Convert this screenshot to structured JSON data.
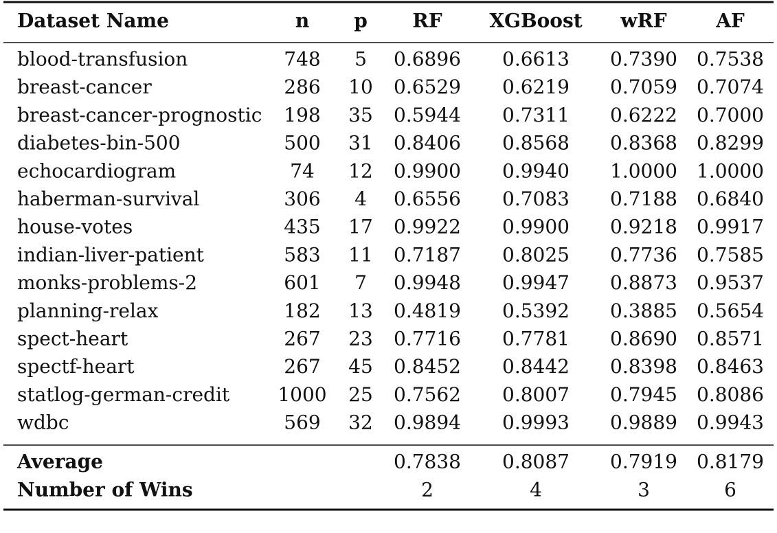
{
  "table": {
    "header": [
      "Dataset Name",
      "n",
      "p",
      "RF",
      "XGBoost",
      "wRF",
      "AF"
    ],
    "rows": [
      [
        "blood-transfusion",
        "748",
        "5",
        "0.6896",
        "0.6613",
        "0.7390",
        "0.7538"
      ],
      [
        "breast-cancer",
        "286",
        "10",
        "0.6529",
        "0.6219",
        "0.7059",
        "0.7074"
      ],
      [
        "breast-cancer-prognostic",
        "198",
        "35",
        "0.5944",
        "0.7311",
        "0.6222",
        "0.7000"
      ],
      [
        "diabetes-bin-500",
        "500",
        "31",
        "0.8406",
        "0.8568",
        "0.8368",
        "0.8299"
      ],
      [
        "echocardiogram",
        "74",
        "12",
        "0.9900",
        "0.9940",
        "1.0000",
        "1.0000"
      ],
      [
        "haberman-survival",
        "306",
        "4",
        "0.6556",
        "0.7083",
        "0.7188",
        "0.6840"
      ],
      [
        "house-votes",
        "435",
        "17",
        "0.9922",
        "0.9900",
        "0.9218",
        "0.9917"
      ],
      [
        "indian-liver-patient",
        "583",
        "11",
        "0.7187",
        "0.8025",
        "0.7736",
        "0.7585"
      ],
      [
        "monks-problems-2",
        "601",
        "7",
        "0.9948",
        "0.9947",
        "0.8873",
        "0.9537"
      ],
      [
        "planning-relax",
        "182",
        "13",
        "0.4819",
        "0.5392",
        "0.3885",
        "0.5654"
      ],
      [
        "spect-heart",
        "267",
        "23",
        "0.7716",
        "0.7781",
        "0.8690",
        "0.8571"
      ],
      [
        "spectf-heart",
        "267",
        "45",
        "0.8452",
        "0.8442",
        "0.8398",
        "0.8463"
      ],
      [
        "statlog-german-credit",
        "1000",
        "25",
        "0.7562",
        "0.8007",
        "0.7945",
        "0.8086"
      ],
      [
        "wdbc",
        "569",
        "32",
        "0.9894",
        "0.9993",
        "0.9889",
        "0.9943"
      ]
    ],
    "footer": [
      {
        "label": "Average",
        "values": [
          "0.7838",
          "0.8087",
          "0.7919",
          "0.8179"
        ]
      },
      {
        "label": "Number of Wins",
        "values": [
          "2",
          "4",
          "3",
          "6"
        ]
      }
    ]
  }
}
